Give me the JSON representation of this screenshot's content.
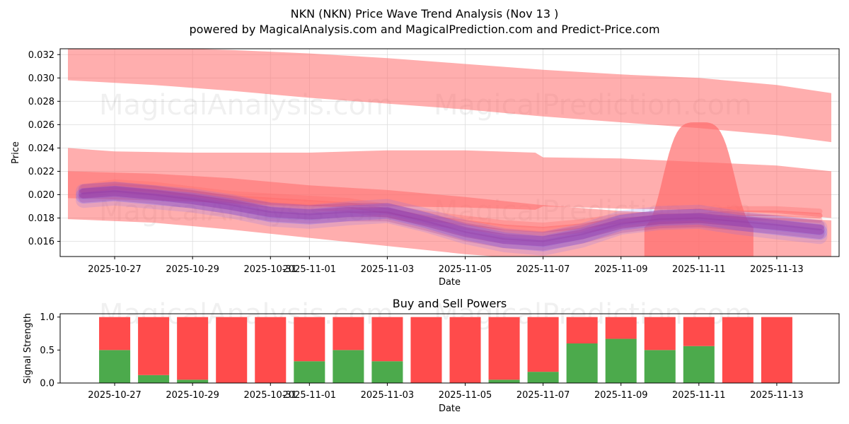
{
  "header": {
    "title": "NKN (NKN) Price Wave Trend Analysis (Nov 13 )",
    "subtitle": "powered by MagicalAnalysis.com and MagicalPrediction.com and Predict-Price.com"
  },
  "watermarks": {
    "left": "MagicalAnalysis.com",
    "right": "MagicalPrediction.com"
  },
  "colors": {
    "band_red": "#ff6b6b",
    "series_blue": "#6d63ff",
    "series_purple": "#8e2a9e",
    "buy_green": "#4caa4c",
    "sell_red": "#ff4b4b"
  },
  "chart_data": [
    {
      "type": "area",
      "title": "",
      "xlabel": "Date",
      "ylabel": "Price",
      "ylim": [
        0.0147,
        0.0325
      ],
      "xlim": [
        -6.4,
        13.6
      ],
      "grid": true,
      "yticks": [
        0.016,
        0.018,
        0.02,
        0.022,
        0.024,
        0.026,
        0.028,
        0.03,
        0.032
      ],
      "ytick_labels": [
        "0.016",
        "0.018",
        "0.020",
        "0.022",
        "0.024",
        "0.026",
        "0.028",
        "0.030",
        "0.032"
      ],
      "xticks": [
        -5,
        -3,
        -1,
        0,
        2,
        4,
        6,
        8,
        10,
        12
      ],
      "xtick_labels": [
        "2025-10-27",
        "2025-10-29",
        "2025-10-31",
        "2025-11-01",
        "2025-11-03",
        "2025-11-05",
        "2025-11-07",
        "2025-11-09",
        "2025-11-11",
        "2025-11-13"
      ],
      "bands": [
        {
          "name": "upper-channel",
          "x": [
            -6.2,
            -4,
            -2,
            0,
            2,
            4,
            6,
            8,
            10,
            12,
            13.4
          ],
          "lower": [
            0.0298,
            0.0294,
            0.0289,
            0.0283,
            0.0278,
            0.0273,
            0.0267,
            0.0262,
            0.0257,
            0.0251,
            0.0245
          ],
          "upper": [
            0.0328,
            0.0326,
            0.0324,
            0.0321,
            0.0317,
            0.0312,
            0.0307,
            0.0303,
            0.03,
            0.0294,
            0.0287
          ]
        },
        {
          "name": "middle-channel",
          "x": [
            -6.2,
            -5,
            -3,
            -1,
            0,
            2,
            4,
            5.8,
            6,
            8,
            10,
            12,
            13.4
          ],
          "lower": [
            0.0197,
            0.0196,
            0.0194,
            0.0191,
            0.019,
            0.019,
            0.0189,
            0.0187,
            0.019,
            0.0188,
            0.0187,
            0.0184,
            0.018
          ],
          "upper": [
            0.024,
            0.0237,
            0.0236,
            0.0236,
            0.0236,
            0.0238,
            0.0238,
            0.0236,
            0.0232,
            0.0231,
            0.0228,
            0.0225,
            0.022
          ]
        },
        {
          "name": "lower-channel",
          "x": [
            -6.2,
            -4,
            -2,
            0,
            2,
            4,
            6,
            8,
            10,
            12,
            13.4
          ],
          "lower": [
            0.0179,
            0.0176,
            0.017,
            0.0163,
            0.0156,
            0.0149,
            0.0144,
            0.0142,
            0.014,
            0.0138,
            0.0137
          ],
          "upper": [
            0.022,
            0.0218,
            0.0214,
            0.0208,
            0.0204,
            0.0198,
            0.0191,
            0.0186,
            0.0183,
            0.018,
            0.0178
          ]
        }
      ],
      "spike": {
        "name": "nov-11-spike",
        "center": 10,
        "peak": 0.0262,
        "half_width": 1.0,
        "base": 0.017
      },
      "series": [
        {
          "name": "red-forecast",
          "x": [
            -5.8,
            -5,
            -4,
            -3,
            -2,
            -1,
            0,
            1,
            2,
            3,
            4,
            5,
            6,
            7,
            8,
            9,
            10,
            11,
            12,
            13.1
          ],
          "values": [
            0.0203,
            0.0207,
            0.0205,
            0.0201,
            0.0197,
            0.0195,
            0.0193,
            0.0191,
            0.0186,
            0.018,
            0.0176,
            0.0172,
            0.017,
            0.0173,
            0.0178,
            0.018,
            0.0182,
            0.0184,
            0.0184,
            0.0182
          ]
        },
        {
          "name": "blue-wave",
          "x": [
            -5.8,
            -5,
            -4,
            -3,
            -2,
            -1,
            0,
            1,
            2,
            3,
            4,
            5,
            6,
            7,
            8,
            9,
            10,
            11,
            12,
            13.1
          ],
          "values": [
            0.0199,
            0.0201,
            0.0198,
            0.0195,
            0.019,
            0.0183,
            0.0181,
            0.0184,
            0.0186,
            0.0178,
            0.0168,
            0.0161,
            0.0158,
            0.0165,
            0.0176,
            0.018,
            0.0181,
            0.0176,
            0.0172,
            0.0168
          ]
        },
        {
          "name": "purple-wave",
          "x": [
            -5.8,
            -5,
            -4,
            -3,
            -2,
            -1,
            0,
            1,
            2,
            3,
            4,
            5,
            6,
            7,
            8,
            9,
            10,
            11,
            12,
            13.1
          ],
          "values": [
            0.0201,
            0.0203,
            0.02,
            0.0196,
            0.0191,
            0.0185,
            0.0183,
            0.0185,
            0.0185,
            0.0177,
            0.0168,
            0.0162,
            0.016,
            0.0166,
            0.0175,
            0.0179,
            0.018,
            0.0177,
            0.0174,
            0.017
          ]
        }
      ]
    },
    {
      "type": "bar",
      "title": "Buy and Sell Powers",
      "xlabel": "Date",
      "ylabel": "Signal Strength",
      "ylim": [
        0,
        1.05
      ],
      "yticks": [
        0,
        0.5,
        1
      ],
      "ytick_labels": [
        "0.0",
        "0.5",
        "1.0"
      ],
      "xticks": [
        -5,
        -3,
        -1,
        0,
        2,
        4,
        6,
        8,
        10,
        12
      ],
      "xtick_labels": [
        "2025-10-27",
        "2025-10-29",
        "2025-10-31",
        "2025-11-01",
        "2025-11-03",
        "2025-11-05",
        "2025-11-07",
        "2025-11-09",
        "2025-11-11",
        "2025-11-13"
      ],
      "categories": [
        -5,
        -4,
        -3,
        -2,
        -1,
        0,
        1,
        2,
        3,
        4,
        5,
        6,
        7,
        8,
        9,
        10,
        11,
        12
      ],
      "series": [
        {
          "name": "Buy",
          "values": [
            0.5,
            0.12,
            0.05,
            0,
            0,
            0.33,
            0.5,
            0.33,
            0,
            0,
            0.05,
            0.17,
            0.6,
            0.67,
            0.5,
            0.56,
            0,
            0
          ]
        },
        {
          "name": "Sell",
          "values": [
            0.5,
            0.88,
            0.95,
            1,
            1,
            0.67,
            0.5,
            0.67,
            1,
            1,
            0.95,
            0.83,
            0.4,
            0.33,
            0.5,
            0.44,
            1,
            1
          ]
        }
      ]
    }
  ]
}
